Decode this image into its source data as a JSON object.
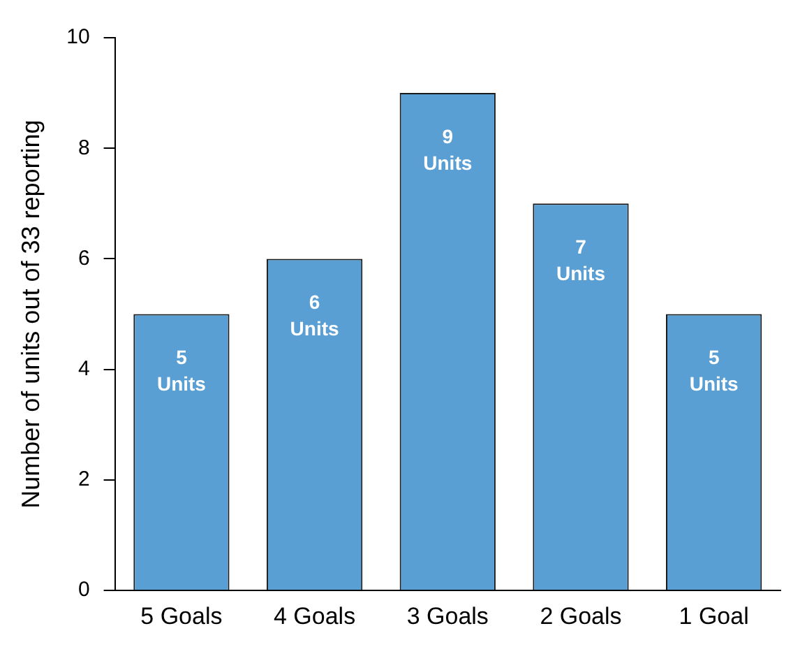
{
  "chart_data": {
    "type": "bar",
    "ylabel": "Number of units out of 33 reporting",
    "categories": [
      "5 Goals",
      "4 Goals",
      "3 Goals",
      "2 Goals",
      "1 Goal"
    ],
    "values": [
      5,
      6,
      9,
      7,
      5
    ],
    "color": "#5a9fd4",
    "value_labels": [
      "5 Units",
      "6 Units",
      "9 Units",
      "7 Units",
      "5 Units"
    ],
    "ylim": [
      0,
      10
    ],
    "yticks": [
      0,
      2,
      4,
      6,
      8,
      10
    ],
    "grid": false,
    "legend": false
  }
}
